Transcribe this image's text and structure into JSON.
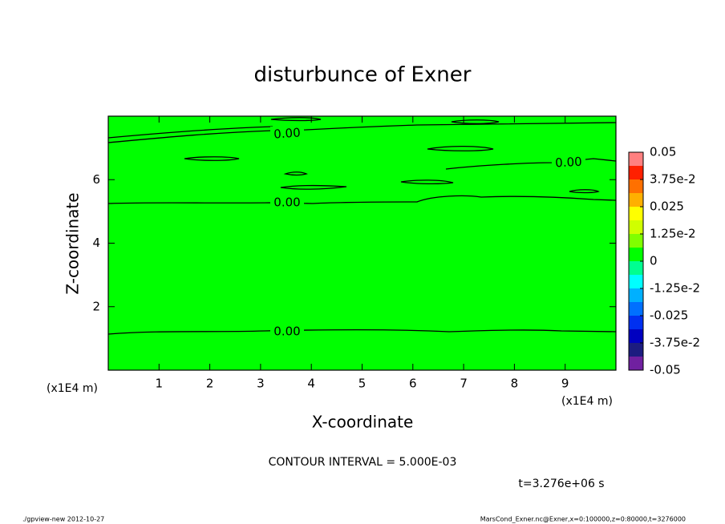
{
  "chart_data": {
    "type": "contour",
    "title": "disturbunce of Exner",
    "x_label": "X-coordinate",
    "y_label": "Z-coordinate",
    "x_unit": "(x1E4 m)",
    "xlim": [
      0,
      10
    ],
    "xticks": [
      1,
      2,
      3,
      4,
      5,
      6,
      7,
      8,
      9
    ],
    "ylim": [
      0,
      8
    ],
    "yticks": [
      2,
      4,
      6
    ],
    "fill_color": "#00ff00",
    "contours": [
      {
        "value": 0,
        "label": "0.00"
      }
    ],
    "colorbar": {
      "clim": [
        -0.05,
        0.05
      ],
      "ticks": [
        {
          "value": 0.05,
          "label": "0.05"
        },
        {
          "value": 0.0375,
          "label": "3.75e-2"
        },
        {
          "value": 0.025,
          "label": "0.025"
        },
        {
          "value": 0.0125,
          "label": "1.25e-2"
        },
        0,
        {
          "value": -0.0125,
          "label": "-1.25e-2"
        },
        {
          "value": -0.025,
          "label": "-0.025"
        },
        {
          "value": -0.0375,
          "label": "-3.75e-2"
        },
        {
          "value": -0.05,
          "label": "-0.05"
        }
      ],
      "levels": [
        -0.05,
        -0.04375,
        -0.0375,
        -0.03125,
        -0.025,
        -0.01875,
        -0.0125,
        -0.00625,
        0,
        0.00625,
        0.0125,
        0.01875,
        0.025,
        0.03125,
        0.0375,
        0.04375,
        0.05
      ],
      "colors": [
        "#7020a0",
        "#1c1c80",
        "#0000c0",
        "#0030f0",
        "#0070ff",
        "#00b0ff",
        "#00ffff",
        "#00ff90",
        "#00ff00",
        "#80ff00",
        "#d0ff00",
        "#ffff00",
        "#ffb000",
        "#ff7000",
        "#ff2000",
        "#ff8080"
      ]
    },
    "contour_interval": "CONTOUR INTERVAL = 5.000E-03",
    "time_label": "t=3.276e+06 s",
    "footer_left": "./gpview-new  2012-10-27",
    "footer_right": "MarsCond_Exner.nc@Exner,x=0:100000,z=0:80000,t=3276000"
  }
}
